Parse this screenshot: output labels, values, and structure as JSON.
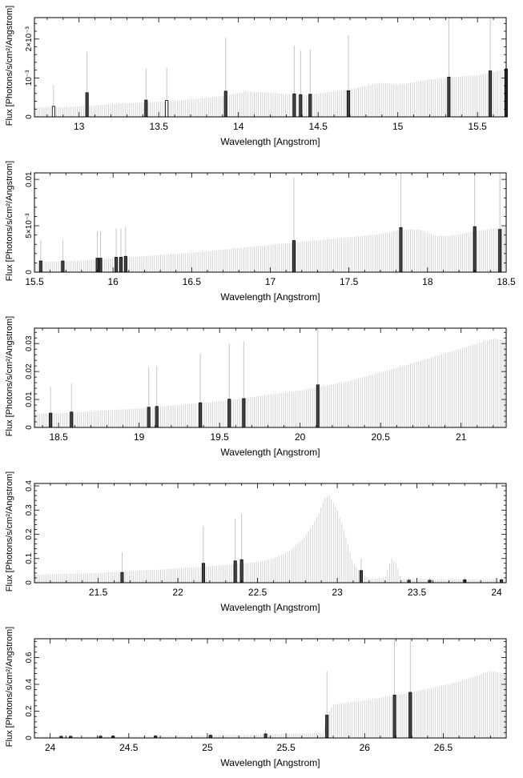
{
  "chart_data": [
    {
      "type": "bar",
      "xlabel": "Wavelength [Angstrom]",
      "ylabel": "Flux [Photons/s/cm²/Angstrom]",
      "xlim": [
        12.72,
        15.68
      ],
      "ylim": [
        0,
        0.00255
      ],
      "xticks": [
        {
          "v": 13,
          "t": "13"
        },
        {
          "v": 13.5,
          "t": "13.5"
        },
        {
          "v": 14,
          "t": "14"
        },
        {
          "v": 14.5,
          "t": "14.5"
        },
        {
          "v": 15,
          "t": "15"
        },
        {
          "v": 15.5,
          "t": "15.5"
        }
      ],
      "yticks": [
        {
          "v": 0,
          "t": "0"
        },
        {
          "v": 0.001,
          "t": "10⁻³"
        },
        {
          "v": 0.002,
          "t": "2×10⁻³"
        }
      ],
      "continuum": [
        [
          12.72,
          0.00023
        ],
        [
          13.0,
          0.00027
        ],
        [
          13.3,
          0.00035
        ],
        [
          13.6,
          0.00041
        ],
        [
          13.9,
          0.00053
        ],
        [
          14.05,
          0.00066
        ],
        [
          14.2,
          0.00062
        ],
        [
          14.4,
          0.00055
        ],
        [
          14.7,
          0.00071
        ],
        [
          14.9,
          0.00088
        ],
        [
          15.0,
          0.00082
        ],
        [
          15.2,
          0.00096
        ],
        [
          15.35,
          0.00102
        ],
        [
          15.5,
          0.00107
        ],
        [
          15.68,
          0.00122
        ]
      ],
      "lines": [
        {
          "x": 12.84,
          "y": 0.00027,
          "err": 0.00055,
          "open": true
        },
        {
          "x": 13.05,
          "y": 0.00062,
          "err": 0.00105,
          "open": false
        },
        {
          "x": 13.42,
          "y": 0.00043,
          "err": 0.00082,
          "open": false
        },
        {
          "x": 13.55,
          "y": 0.00042,
          "err": 0.00084,
          "open": true
        },
        {
          "x": 13.92,
          "y": 0.00066,
          "err": 0.00138,
          "open": false
        },
        {
          "x": 14.35,
          "y": 0.00059,
          "err": 0.00124,
          "open": false
        },
        {
          "x": 14.39,
          "y": 0.00057,
          "err": 0.00113,
          "open": false
        },
        {
          "x": 14.45,
          "y": 0.00058,
          "err": 0.00115,
          "open": false
        },
        {
          "x": 14.69,
          "y": 0.00067,
          "err": 0.00143,
          "open": false
        },
        {
          "x": 15.32,
          "y": 0.00102,
          "err": 0.00196,
          "open": false
        },
        {
          "x": 15.58,
          "y": 0.00118,
          "err": 0.00225,
          "open": false
        },
        {
          "x": 15.68,
          "y": 0.00123,
          "err": 0.0023,
          "open": false
        }
      ]
    },
    {
      "type": "bar",
      "xlabel": "Wavelength [Angstrom]",
      "ylabel": "Flux [Photons/s/cm²/Angstrom]",
      "xlim": [
        15.5,
        18.5
      ],
      "ylim": [
        0,
        0.0107
      ],
      "xticks": [
        {
          "v": 15.5,
          "t": "15.5"
        },
        {
          "v": 16,
          "t": "16"
        },
        {
          "v": 16.5,
          "t": "16.5"
        },
        {
          "v": 17,
          "t": "17"
        },
        {
          "v": 17.5,
          "t": "17.5"
        },
        {
          "v": 18,
          "t": "18"
        },
        {
          "v": 18.5,
          "t": "18.5"
        }
      ],
      "yticks": [
        {
          "v": 0,
          "t": "0"
        },
        {
          "v": 0.005,
          "t": "5×10⁻³"
        },
        {
          "v": 0.01,
          "t": "0.01"
        }
      ],
      "continuum": [
        [
          15.5,
          0.00108
        ],
        [
          15.8,
          0.00125
        ],
        [
          16.1,
          0.0016
        ],
        [
          16.5,
          0.0021
        ],
        [
          16.8,
          0.0026
        ],
        [
          17.1,
          0.0031
        ],
        [
          17.4,
          0.0036
        ],
        [
          17.7,
          0.0041
        ],
        [
          17.85,
          0.0046
        ],
        [
          17.95,
          0.0046
        ],
        [
          18.05,
          0.0039
        ],
        [
          18.15,
          0.0039
        ],
        [
          18.3,
          0.0044
        ],
        [
          18.5,
          0.0049
        ]
      ],
      "lines": [
        {
          "x": 15.54,
          "y": 0.0012,
          "err": 0.0022,
          "open": false
        },
        {
          "x": 15.68,
          "y": 0.0012,
          "err": 0.0023,
          "open": false
        },
        {
          "x": 15.9,
          "y": 0.0015,
          "err": 0.0029,
          "open": false
        },
        {
          "x": 15.92,
          "y": 0.0015,
          "err": 0.0029,
          "open": false
        },
        {
          "x": 16.02,
          "y": 0.0016,
          "err": 0.0031,
          "open": false
        },
        {
          "x": 16.05,
          "y": 0.0016,
          "err": 0.0031,
          "open": false
        },
        {
          "x": 16.08,
          "y": 0.0017,
          "err": 0.0032,
          "open": false
        },
        {
          "x": 17.15,
          "y": 0.0034,
          "err": 0.0068,
          "open": false
        },
        {
          "x": 17.83,
          "y": 0.0048,
          "err": 0.0096,
          "open": false
        },
        {
          "x": 18.3,
          "y": 0.0049,
          "err": 0.0096,
          "open": false
        },
        {
          "x": 18.46,
          "y": 0.0046,
          "err": 0.0093,
          "open": false
        }
      ]
    },
    {
      "type": "bar",
      "xlabel": "Wavelength [Angstrom]",
      "ylabel": "Flux [Photons/s/cm²/Angstrom]",
      "xlim": [
        18.35,
        21.28
      ],
      "ylim": [
        0,
        0.0355
      ],
      "xticks": [
        {
          "v": 18.5,
          "t": "18.5"
        },
        {
          "v": 19,
          "t": "19"
        },
        {
          "v": 19.5,
          "t": "19.5"
        },
        {
          "v": 20,
          "t": "20"
        },
        {
          "v": 20.5,
          "t": "20.5"
        },
        {
          "v": 21,
          "t": "21"
        }
      ],
      "yticks": [
        {
          "v": 0,
          "t": "0"
        },
        {
          "v": 0.01,
          "t": "0.01"
        },
        {
          "v": 0.02,
          "t": "0.02"
        },
        {
          "v": 0.03,
          "t": "0.03"
        }
      ],
      "continuum": [
        [
          18.35,
          0.0048
        ],
        [
          18.6,
          0.0054
        ],
        [
          19.0,
          0.0068
        ],
        [
          19.5,
          0.0093
        ],
        [
          20.0,
          0.0132
        ],
        [
          20.3,
          0.0165
        ],
        [
          20.6,
          0.0213
        ],
        [
          20.9,
          0.0265
        ],
        [
          21.1,
          0.03
        ],
        [
          21.2,
          0.0318
        ],
        [
          21.28,
          0.031
        ]
      ],
      "lines": [
        {
          "x": 18.45,
          "y": 0.0051,
          "err": 0.0094,
          "open": false
        },
        {
          "x": 18.58,
          "y": 0.0055,
          "err": 0.0102,
          "open": false
        },
        {
          "x": 19.06,
          "y": 0.0072,
          "err": 0.0143,
          "open": false
        },
        {
          "x": 19.11,
          "y": 0.0075,
          "err": 0.0145,
          "open": false
        },
        {
          "x": 19.38,
          "y": 0.0088,
          "err": 0.0176,
          "open": false
        },
        {
          "x": 19.56,
          "y": 0.0101,
          "err": 0.0199,
          "open": false
        },
        {
          "x": 19.65,
          "y": 0.0103,
          "err": 0.0205,
          "open": false
        },
        {
          "x": 20.11,
          "y": 0.0152,
          "err": 0.0297,
          "open": false
        }
      ]
    },
    {
      "type": "bar",
      "xlabel": "Wavelength [Angstrom]",
      "ylabel": "Flux [Photons/s/cm²/Angstrom]",
      "xlim": [
        21.1,
        24.06
      ],
      "ylim": [
        0,
        0.41
      ],
      "xticks": [
        {
          "v": 21.5,
          "t": "21.5"
        },
        {
          "v": 22,
          "t": "22"
        },
        {
          "v": 22.5,
          "t": "22.5"
        },
        {
          "v": 23,
          "t": "23"
        },
        {
          "v": 23.5,
          "t": "23.5"
        },
        {
          "v": 24,
          "t": "24"
        }
      ],
      "yticks": [
        {
          "v": 0,
          "t": "0"
        },
        {
          "v": 0.1,
          "t": "0.1"
        },
        {
          "v": 0.2,
          "t": "0.2"
        },
        {
          "v": 0.3,
          "t": "0.3"
        },
        {
          "v": 0.4,
          "t": "0.4"
        }
      ],
      "continuum": [
        [
          21.1,
          0.033
        ],
        [
          21.5,
          0.04
        ],
        [
          21.9,
          0.055
        ],
        [
          22.2,
          0.068
        ],
        [
          22.5,
          0.085
        ],
        [
          22.6,
          0.1
        ],
        [
          22.7,
          0.13
        ],
        [
          22.8,
          0.19
        ],
        [
          22.88,
          0.28
        ],
        [
          22.92,
          0.35
        ],
        [
          22.95,
          0.36
        ],
        [
          23.0,
          0.3
        ],
        [
          23.05,
          0.2
        ],
        [
          23.1,
          0.08
        ],
        [
          23.15,
          0.04
        ],
        [
          23.2,
          0.015
        ],
        [
          23.3,
          0.02
        ],
        [
          23.34,
          0.1
        ],
        [
          23.37,
          0.08
        ],
        [
          23.4,
          0.015
        ],
        [
          24.06,
          0.012
        ]
      ],
      "lines": [
        {
          "x": 21.65,
          "y": 0.042,
          "err": 0.085,
          "open": false
        },
        {
          "x": 22.16,
          "y": 0.08,
          "err": 0.155,
          "open": false
        },
        {
          "x": 22.36,
          "y": 0.09,
          "err": 0.175,
          "open": false
        },
        {
          "x": 22.4,
          "y": 0.095,
          "err": 0.19,
          "open": false
        },
        {
          "x": 23.15,
          "y": 0.05,
          "err": 0.05,
          "open": false
        },
        {
          "x": 23.45,
          "y": 0.01,
          "err": 0.01,
          "open": false
        },
        {
          "x": 23.58,
          "y": 0.01,
          "err": 0.01,
          "open": false
        },
        {
          "x": 23.8,
          "y": 0.012,
          "err": 0.012,
          "open": false
        },
        {
          "x": 24.03,
          "y": 0.012,
          "err": 0.012,
          "open": false
        }
      ]
    },
    {
      "type": "bar",
      "xlabel": "Wavelength [Angstrom]",
      "ylabel": "Flux [Photons/s/cm²/Angstrom]",
      "xlim": [
        23.9,
        26.9
      ],
      "ylim": [
        0,
        0.74
      ],
      "xticks": [
        {
          "v": 24,
          "t": "24"
        },
        {
          "v": 24.5,
          "t": "24.5"
        },
        {
          "v": 25,
          "t": "25"
        },
        {
          "v": 25.5,
          "t": "25.5"
        },
        {
          "v": 26,
          "t": "26"
        },
        {
          "v": 26.5,
          "t": "26.5"
        }
      ],
      "yticks": [
        {
          "v": 0,
          "t": "0"
        },
        {
          "v": 0.2,
          "t": "0.2"
        },
        {
          "v": 0.4,
          "t": "0.4"
        },
        {
          "v": 0.6,
          "t": "0.6"
        }
      ],
      "continuum": [
        [
          23.9,
          0.012
        ],
        [
          24.5,
          0.014
        ],
        [
          25.0,
          0.018
        ],
        [
          25.5,
          0.03
        ],
        [
          25.74,
          0.04
        ],
        [
          25.76,
          0.17
        ],
        [
          25.8,
          0.25
        ],
        [
          26.0,
          0.28
        ],
        [
          26.3,
          0.34
        ],
        [
          26.6,
          0.42
        ],
        [
          26.8,
          0.5
        ],
        [
          26.9,
          0.48
        ]
      ],
      "lines": [
        {
          "x": 24.07,
          "y": 0.012,
          "err": 0.012,
          "open": false
        },
        {
          "x": 24.13,
          "y": 0.012,
          "err": 0.012,
          "open": false
        },
        {
          "x": 24.32,
          "y": 0.013,
          "err": 0.013,
          "open": false
        },
        {
          "x": 24.4,
          "y": 0.014,
          "err": 0.014,
          "open": false
        },
        {
          "x": 24.67,
          "y": 0.015,
          "err": 0.015,
          "open": false
        },
        {
          "x": 25.02,
          "y": 0.02,
          "err": 0.02,
          "open": false
        },
        {
          "x": 25.37,
          "y": 0.03,
          "err": 0.03,
          "open": false
        },
        {
          "x": 25.76,
          "y": 0.17,
          "err": 0.33,
          "open": false
        },
        {
          "x": 26.19,
          "y": 0.32,
          "err": 0.62,
          "open": false
        },
        {
          "x": 26.29,
          "y": 0.34,
          "err": 0.66,
          "open": false
        }
      ]
    }
  ]
}
